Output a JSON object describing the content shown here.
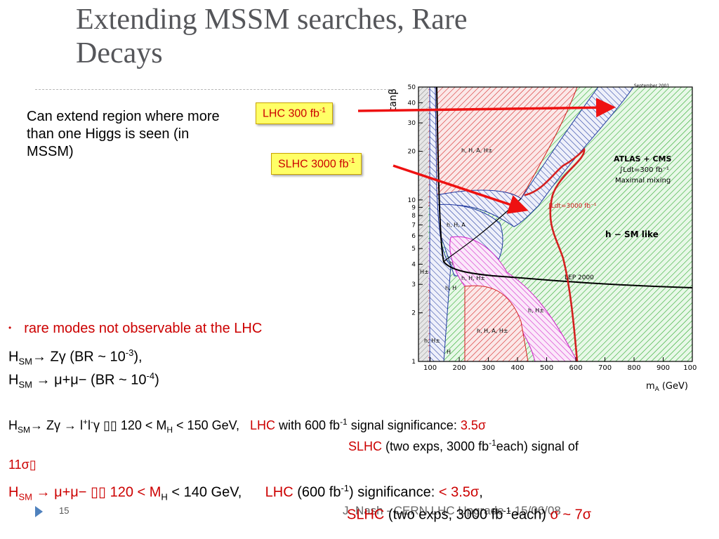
{
  "slide": {
    "title_line1": "Extending MSSM searches, Rare",
    "title_line2": "Decays",
    "intro_text": "Can extend region where more than one Higgs is seen (in MSSM)",
    "callout_lhc": {
      "base": "LHC 300 fb",
      "sup": "-1"
    },
    "callout_slhc": {
      "base": "SLHC 3000 fb",
      "sup": "-1"
    },
    "bullet": "rare modes not observable at the LHC",
    "line_hz": {
      "h": "H",
      "sm": "SM",
      "rest": "→ Zγ (BR ~ 10",
      "exp": "-3",
      "end": "),"
    },
    "line_hmu": {
      "h": "H",
      "sm": "SM",
      "rest": " → μ+μ− (BR ~ 10",
      "exp": "-4",
      "end": ")"
    },
    "detail1": {
      "h": "H",
      "sm": "SM",
      "a": "→ Zγ  → l",
      "lp": "+",
      "l": "l",
      "lm": "-",
      "g": "γ  ▯▯ 120 < M",
      "hsub": "H",
      "b": " < 150 GeV,",
      "lhc": "LHC",
      "c": " with 600 fb",
      "c_sup": "-1",
      "d": " signal significance:  ",
      "sig": "3.5σ"
    },
    "detail1_cont": {
      "slhc": "SLHC",
      "a": " (two exps, 3000 fb",
      "sup": "-1",
      "b": "each) signal of"
    },
    "detail1_end": "11σ▯",
    "detail2": {
      "h": "H",
      "sm": "SM",
      "a": " → μ+μ−  ▯▯ 120 < M",
      "hsub": "H",
      "b": " < 140 GeV,",
      "lhc": "LHC",
      "c": " (600 fb",
      "c_sup": "-1",
      "d": ") significance: ",
      "sig": "< 3.5σ",
      "e": ","
    },
    "overlay": {
      "slhc": "SLHC",
      "a": " (two exps, 3000 fb",
      "sup": "-1",
      "b": "each)",
      "c": "σ ~ 7σ"
    },
    "footer_author": "J. Nash - CERN LHC Upgrade - 15/06/08",
    "page_number": "15"
  },
  "plot": {
    "date": "September 2001",
    "y_label": "tanβ",
    "x_label": "m",
    "x_label_sub": "A",
    "x_label_unit": "(GeV)",
    "x_ticks": [
      "100",
      "200",
      "300",
      "400",
      "500",
      "600",
      "700",
      "800",
      "900",
      "1000"
    ],
    "y_ticks": [
      "1",
      "2",
      "3",
      "4",
      "5",
      "6",
      "7",
      "8",
      "9",
      "10",
      "20",
      "30",
      "40",
      "50"
    ],
    "legend_line1": "ATLAS + CMS",
    "legend_line2": "∫Ldt=300 fb⁻¹",
    "legend_line3": "Maximal mixing",
    "label_3000": "∫Ldt=3000 fb⁻¹",
    "label_sm": "h − SM like",
    "label_lep": "LEP 2000",
    "region_labels": [
      "h, H, A, H±",
      "h, H, A",
      "h, H, H±",
      "h, H",
      "H±",
      "h",
      "h, H±",
      "h, H, A, H±",
      "h, H±",
      "H"
    ],
    "colors": {
      "green": "#2eaa2e",
      "red": "#d42020",
      "blue": "#2038a0",
      "magenta": "#d020c8"
    }
  }
}
